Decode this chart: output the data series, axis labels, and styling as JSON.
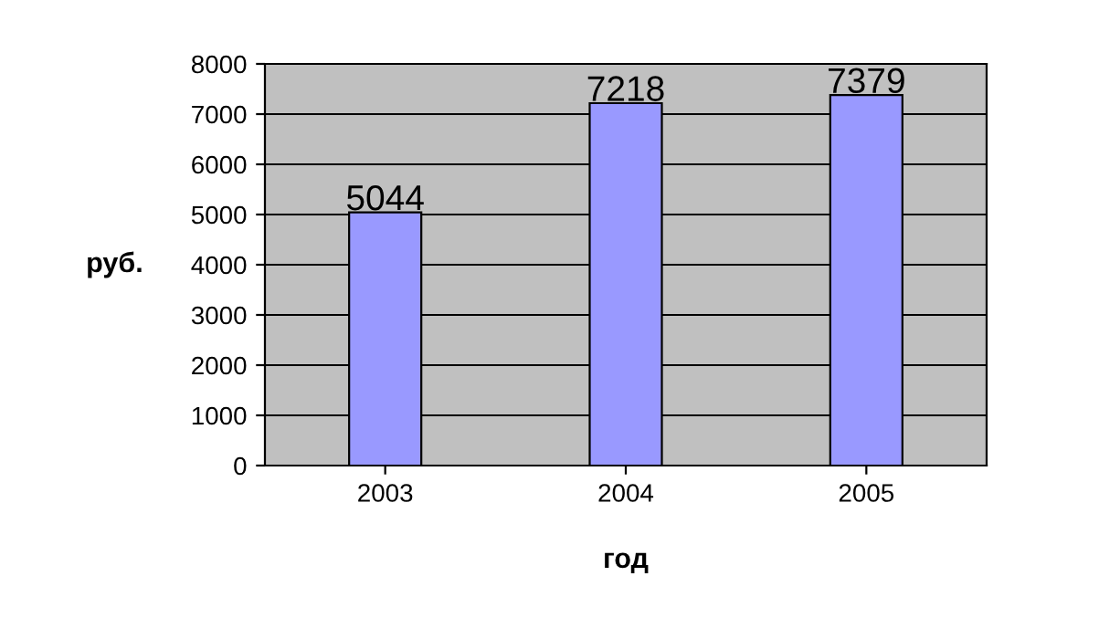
{
  "chart_data": {
    "type": "bar",
    "xlabel": "год",
    "ylabel": "руб.",
    "categories": [
      "2003",
      "2004",
      "2005"
    ],
    "values": [
      5044,
      7218,
      7379
    ],
    "color": "#9999ff",
    "ylim": [
      0,
      8000
    ],
    "yticks": [
      0,
      1000,
      2000,
      3000,
      4000,
      5000,
      6000,
      7000,
      8000
    ],
    "grid": "y",
    "data_labels": true
  }
}
